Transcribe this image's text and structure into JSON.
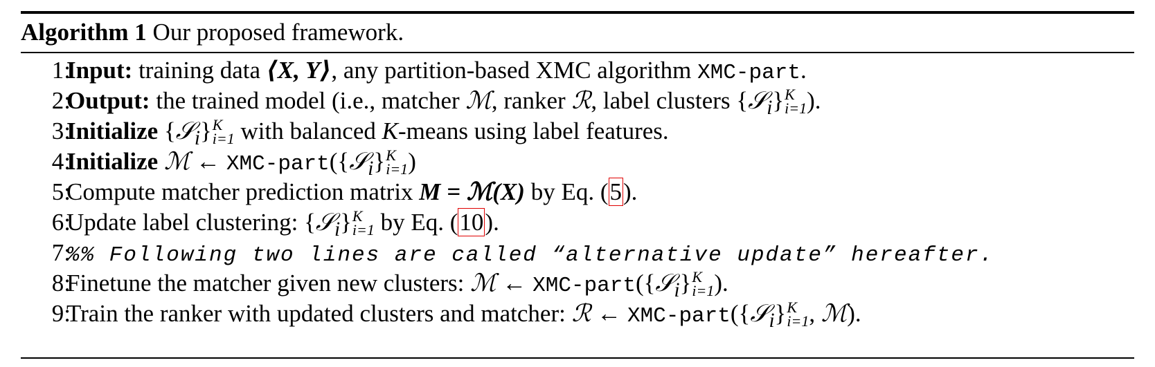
{
  "algorithm": {
    "label": "Algorithm 1",
    "title": "Our proposed framework.",
    "lines": [
      {
        "n": "1:",
        "kw": "Input:",
        "pre": " training data ",
        "math": "⟨X, Y⟩",
        "post": ", any partition-based XMC algorithm ",
        "code": "XMC-part",
        "end": "."
      },
      {
        "n": "2:",
        "kw": "Output:",
        "text": " the trained model (i.e., matcher ℳ, ranker ℛ, label clusters {𝒮ᵢ}ᵢ₌₁ᴷ)."
      },
      {
        "n": "3:",
        "kw": "Initialize",
        "text": " {𝒮ᵢ}ᵢ₌₁ᴷ with balanced K-means using label features."
      },
      {
        "n": "4:",
        "kw": "Initialize",
        "text": " ℳ ← XMC-part({𝒮ᵢ}ᵢ₌₁ᴷ)"
      },
      {
        "n": "5:",
        "pre": "Compute matcher prediction matrix ",
        "math": "M = ℳ(X)",
        "post": " by Eq. (",
        "ref": "5",
        "end": ")."
      },
      {
        "n": "6:",
        "pre": "Update label clustering: {𝒮ᵢ}ᵢ₌₁ᴷ by Eq. (",
        "ref": "10",
        "end": ")."
      },
      {
        "n": "7:",
        "comment": "%% Following two lines are called “alternative update” hereafter."
      },
      {
        "n": "8:",
        "text": "Finetune the matcher given new clusters: ℳ ← XMC-part({𝒮ᵢ}ᵢ₌₁ᴷ)."
      },
      {
        "n": "9:",
        "text": "Train the ranker with updated clusters and matcher: ℛ ← XMC-part({𝒮ᵢ}ᵢ₌₁ᴷ, ℳ)."
      }
    ]
  },
  "symbols": {
    "matcher": "ℳ",
    "ranker": "ℛ",
    "cluster": "𝒮",
    "arrow": "←",
    "code": "XMC-part",
    "sub_i": "i",
    "sub_range": "i=1",
    "sup_K": "K"
  }
}
